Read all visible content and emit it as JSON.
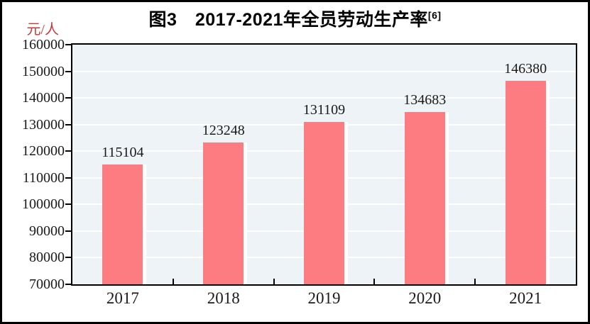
{
  "chart_data": {
    "type": "bar",
    "title": "图3　2017-2021年全员劳动生产率",
    "title_superscript": "[6]",
    "unit_label": "元/人",
    "categories": [
      "2017",
      "2018",
      "2019",
      "2020",
      "2021"
    ],
    "values": [
      115104,
      123248,
      131109,
      134683,
      146380
    ],
    "data_labels": [
      "115104",
      "123248",
      "131109",
      "134683",
      "146380"
    ],
    "ylabel": "元/人",
    "xlabel": "",
    "ylim": [
      70000,
      160000
    ],
    "ytick_step": 10000,
    "ytick_labels": [
      "160000",
      "150000",
      "140000",
      "130000",
      "120000",
      "110000",
      "100000",
      "90000",
      "80000",
      "70000"
    ],
    "grid": "horizontal-gridlines-on",
    "legend": "none",
    "colors": {
      "bar": "#FC7C81",
      "bar_right_highlight": "#FFFFFF",
      "plot_background": "#EDF3F7",
      "gridline": "#FFFFFF",
      "axis": "#000000",
      "text": "#1A1A1A",
      "unit_label_text": "#C23B39"
    }
  }
}
